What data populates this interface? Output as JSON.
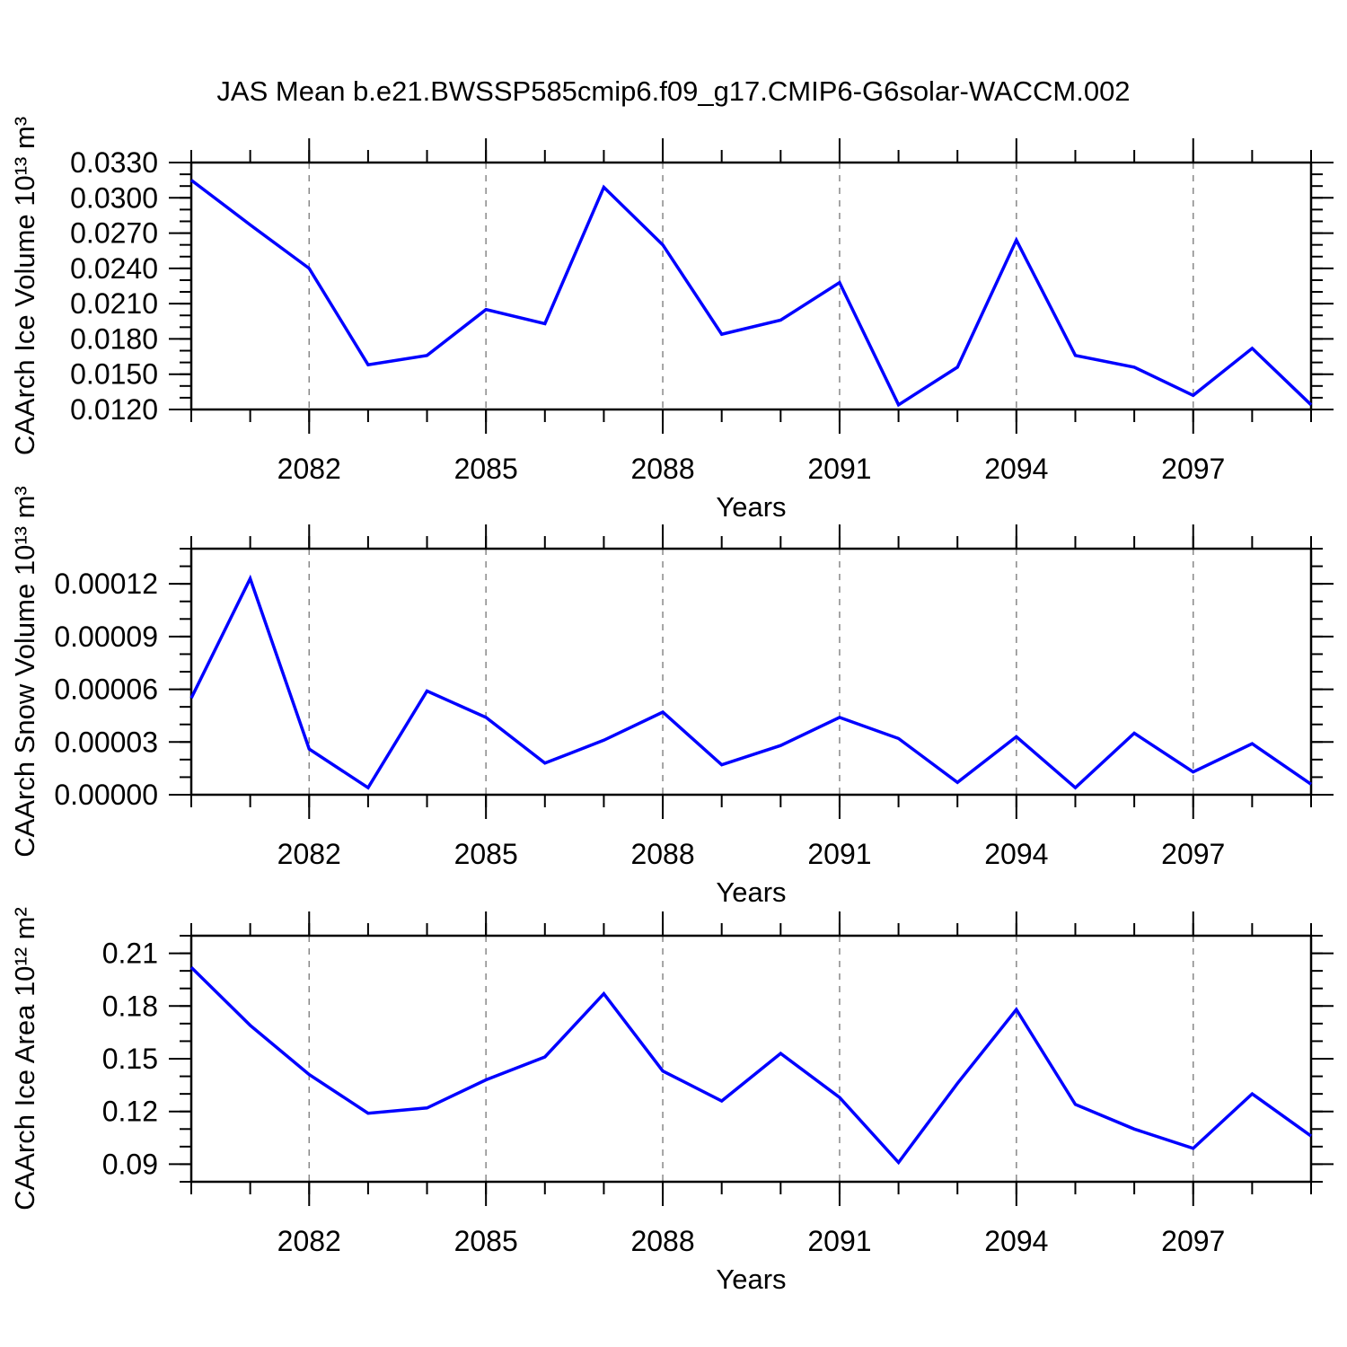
{
  "title": "JAS Mean b.e21.BWSSP585cmip6.f09_g17.CMIP6-G6solar-WACCM.002",
  "line_color": "#0000FF",
  "gridline_color": "#888888",
  "axis_color": "#000000",
  "chart_data": [
    {
      "type": "line",
      "name": "ice-volume",
      "ylabel": "CAArch Ice Volume 10¹³ m³",
      "xlabel": "Years",
      "x": [
        2080,
        2081,
        2082,
        2083,
        2084,
        2085,
        2086,
        2087,
        2088,
        2089,
        2090,
        2091,
        2092,
        2093,
        2094,
        2095,
        2096,
        2097,
        2098,
        2099
      ],
      "values": [
        0.0315,
        0.0277,
        0.024,
        0.0158,
        0.0166,
        0.0205,
        0.0193,
        0.0309,
        0.026,
        0.0184,
        0.0196,
        0.0228,
        0.0124,
        0.0156,
        0.0264,
        0.0166,
        0.0156,
        0.0132,
        0.0172,
        0.0124
      ],
      "xlim": [
        2080,
        2099
      ],
      "ylim": [
        0.012,
        0.033
      ],
      "ytick_values": [
        0.033,
        0.03,
        0.027,
        0.024,
        0.021,
        0.018,
        0.015,
        0.012
      ],
      "ytick_labels": [
        "0.0330",
        "0.0300",
        "0.0270",
        "0.0240",
        "0.0210",
        "0.0180",
        "0.0150",
        "0.0120"
      ],
      "y_minor_step": 0.001,
      "xtick_major": [
        2082,
        2085,
        2088,
        2091,
        2094,
        2097
      ],
      "xtick_labels": [
        "2082",
        "2085",
        "2088",
        "2091",
        "2094",
        "2097"
      ],
      "x_minor_step": 1,
      "grid": "vertical dashed at major x ticks",
      "legend": null
    },
    {
      "type": "line",
      "name": "snow-volume",
      "ylabel": "CAArch Snow Volume 10¹³ m³",
      "xlabel": "Years",
      "x": [
        2080,
        2081,
        2082,
        2083,
        2084,
        2085,
        2086,
        2087,
        2088,
        2089,
        2090,
        2091,
        2092,
        2093,
        2094,
        2095,
        2096,
        2097,
        2098,
        2099
      ],
      "values": [
        5.5e-05,
        0.000123,
        2.6e-05,
        4e-06,
        5.9e-05,
        4.4e-05,
        1.8e-05,
        3.1e-05,
        4.7e-05,
        1.7e-05,
        2.8e-05,
        4.4e-05,
        3.2e-05,
        7e-06,
        3.3e-05,
        4e-06,
        3.5e-05,
        1.3e-05,
        2.9e-05,
        6e-06
      ],
      "xlim": [
        2080,
        2099
      ],
      "ylim": [
        0.0,
        0.00014
      ],
      "ytick_values": [
        0.00012,
        9e-05,
        6e-05,
        3e-05,
        0.0
      ],
      "ytick_labels": [
        "0.00012",
        "0.00009",
        "0.00006",
        "0.00003",
        "0.00000"
      ],
      "y_minor_step": 1e-05,
      "xtick_major": [
        2082,
        2085,
        2088,
        2091,
        2094,
        2097
      ],
      "xtick_labels": [
        "2082",
        "2085",
        "2088",
        "2091",
        "2094",
        "2097"
      ],
      "x_minor_step": 1,
      "grid": "vertical dashed at major x ticks",
      "legend": null
    },
    {
      "type": "line",
      "name": "ice-area",
      "ylabel": "CAArch Ice Area 10¹² m²",
      "xlabel": "Years",
      "x": [
        2080,
        2081,
        2082,
        2083,
        2084,
        2085,
        2086,
        2087,
        2088,
        2089,
        2090,
        2091,
        2092,
        2093,
        2094,
        2095,
        2096,
        2097,
        2098,
        2099
      ],
      "values": [
        0.202,
        0.169,
        0.141,
        0.119,
        0.122,
        0.138,
        0.151,
        0.187,
        0.143,
        0.126,
        0.153,
        0.128,
        0.091,
        0.136,
        0.178,
        0.124,
        0.11,
        0.099,
        0.13,
        0.106
      ],
      "xlim": [
        2080,
        2099
      ],
      "ylim": [
        0.08,
        0.22
      ],
      "ytick_values": [
        0.21,
        0.18,
        0.15,
        0.12,
        0.09
      ],
      "ytick_labels": [
        "0.21",
        "0.18",
        "0.15",
        "0.12",
        "0.09"
      ],
      "y_minor_step": 0.01,
      "xtick_major": [
        2082,
        2085,
        2088,
        2091,
        2094,
        2097
      ],
      "xtick_labels": [
        "2082",
        "2085",
        "2088",
        "2091",
        "2094",
        "2097"
      ],
      "x_minor_step": 1,
      "grid": "vertical dashed at major x ticks",
      "legend": null
    }
  ]
}
